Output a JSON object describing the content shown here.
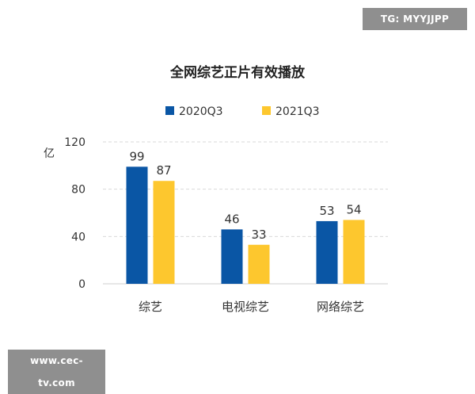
{
  "watermark_top": "TG: MYYJJPP",
  "watermark_bottom": "www.cec-tv.com",
  "chart_data": {
    "type": "bar",
    "title": "全网综艺正片有效播放",
    "ylabel": "亿",
    "xlabel": "",
    "categories": [
      "综艺",
      "电视综艺",
      "网络综艺"
    ],
    "series": [
      {
        "name": "2020Q3",
        "values": [
          99,
          46,
          53
        ],
        "color": "#0a56a5"
      },
      {
        "name": "2021Q3",
        "values": [
          87,
          33,
          54
        ],
        "color": "#fdc72e"
      }
    ],
    "ylim": [
      0,
      120
    ],
    "yticks": [
      0,
      40,
      80,
      120
    ],
    "grid": true,
    "legend_position": "top-center",
    "data_labels": true
  }
}
